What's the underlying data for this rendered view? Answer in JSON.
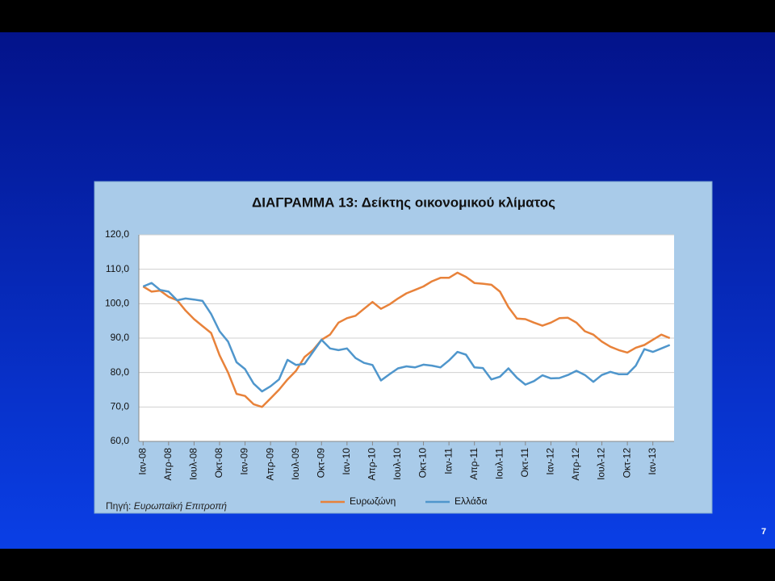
{
  "page_number": "7",
  "chart_data": {
    "type": "line",
    "title": "ΔΙΑΓΡΑΜΜΑ 13: Δείκτης οικονομικού κλίματος",
    "source": {
      "label": "Πηγή:",
      "text": "Ευρωπαϊκή Επιτροπή"
    },
    "categories": [
      "Ιαν-08",
      null,
      null,
      "Απρ-08",
      null,
      null,
      "Ιουλ-08",
      null,
      null,
      "Οκτ-08",
      null,
      null,
      "Ιαν-09",
      null,
      null,
      "Απρ-09",
      null,
      null,
      "Ιουλ-09",
      null,
      null,
      "Οκτ-09",
      null,
      null,
      "Ιαν-10",
      null,
      null,
      "Απρ-10",
      null,
      null,
      "Ιουλ-10",
      null,
      null,
      "Οκτ-10",
      null,
      null,
      "Ιαν-11",
      null,
      null,
      "Απρ-11",
      null,
      null,
      "Ιουλ-11",
      null,
      null,
      "Οκτ-11",
      null,
      null,
      "Ιαν-12",
      null,
      null,
      "Απρ-12",
      null,
      null,
      "Ιουλ-12",
      null,
      null,
      "Οκτ-12",
      null,
      null,
      "Ιαν-13",
      null,
      null
    ],
    "series": [
      {
        "name": "Ευρωζώνη",
        "color": "#e8823a",
        "values": [
          105,
          103.5,
          103.8,
          102,
          101,
          98,
          95.5,
          93.5,
          91.5,
          85,
          80,
          73.8,
          73.2,
          70.8,
          70,
          72.5,
          75,
          78,
          80.5,
          84.5,
          86.5,
          89.5,
          91,
          94.5,
          95.8,
          96.5,
          98.5,
          100.5,
          98.5,
          99.8,
          101.5,
          103,
          104,
          105,
          106.5,
          107.5,
          107.5,
          109,
          107.8,
          106,
          105.8,
          105.5,
          103.5,
          99,
          95.7,
          95.5,
          94.5,
          93.6,
          94.5,
          95.8,
          95.9,
          94.5,
          92,
          91,
          89,
          87.5,
          86.5,
          85.8,
          87.2,
          88,
          89.5,
          91,
          90
        ]
      },
      {
        "name": "Ελλάδα",
        "color": "#4f96cc",
        "values": [
          105,
          106,
          104,
          103.5,
          101,
          101.5,
          101.2,
          100.8,
          97,
          92,
          89,
          83,
          81,
          76.8,
          74.5,
          76,
          78,
          83.7,
          82.2,
          82.5,
          86,
          89.5,
          87,
          86.5,
          87,
          84.2,
          82.8,
          82.2,
          77.7,
          79.5,
          81.2,
          81.8,
          81.5,
          82.3,
          82,
          81.5,
          83.5,
          86,
          85.2,
          81.5,
          81.3,
          78,
          78.8,
          81.2,
          78.5,
          76.5,
          77.5,
          79.2,
          78.3,
          78.4,
          79.3,
          80.5,
          79.3,
          77.3,
          79.3,
          80.2,
          79.5,
          79.5,
          82,
          86.8,
          86,
          87,
          88
        ]
      }
    ],
    "ylim": [
      60,
      120
    ],
    "yticks": [
      {
        "value": 60,
        "label": "60,0"
      },
      {
        "value": 70,
        "label": "70,0"
      },
      {
        "value": 80,
        "label": "80,0"
      },
      {
        "value": 90,
        "label": "90,0"
      },
      {
        "value": 100,
        "label": "100,0"
      },
      {
        "value": 110,
        "label": "110,0"
      },
      {
        "value": 120,
        "label": "120,0"
      }
    ],
    "grid": true,
    "legend": "bottom"
  }
}
